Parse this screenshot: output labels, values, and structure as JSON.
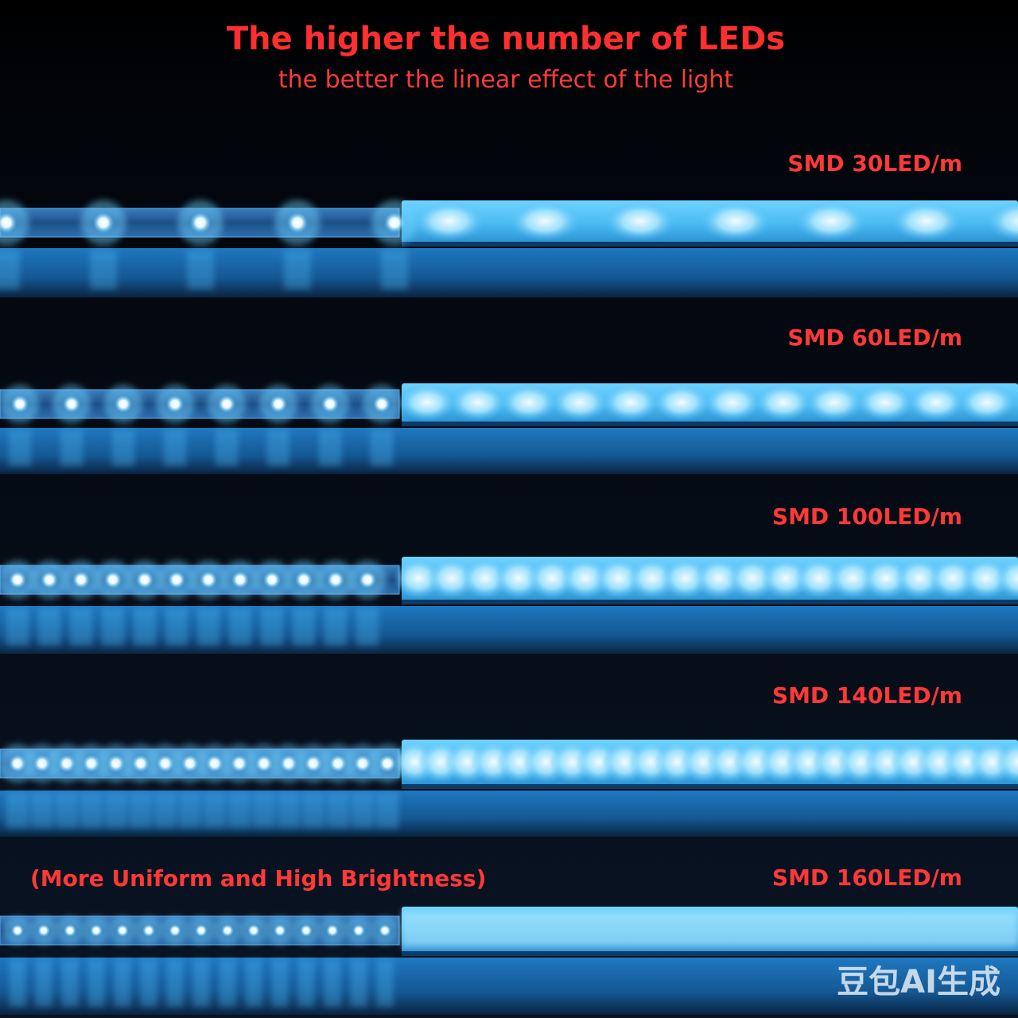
{
  "header": {
    "title": "The higher the number of LEDs",
    "subtitle": "the better the linear effect of the light"
  },
  "strips": [
    {
      "label": "SMD 30LED/m"
    },
    {
      "label": "SMD 60LED/m"
    },
    {
      "label": "SMD 100LED/m"
    },
    {
      "label": "SMD 140LED/m"
    },
    {
      "label": "SMD 160LED/m"
    }
  ],
  "note": "(More Uniform and High Brightness)",
  "watermark": "豆包AI生成"
}
